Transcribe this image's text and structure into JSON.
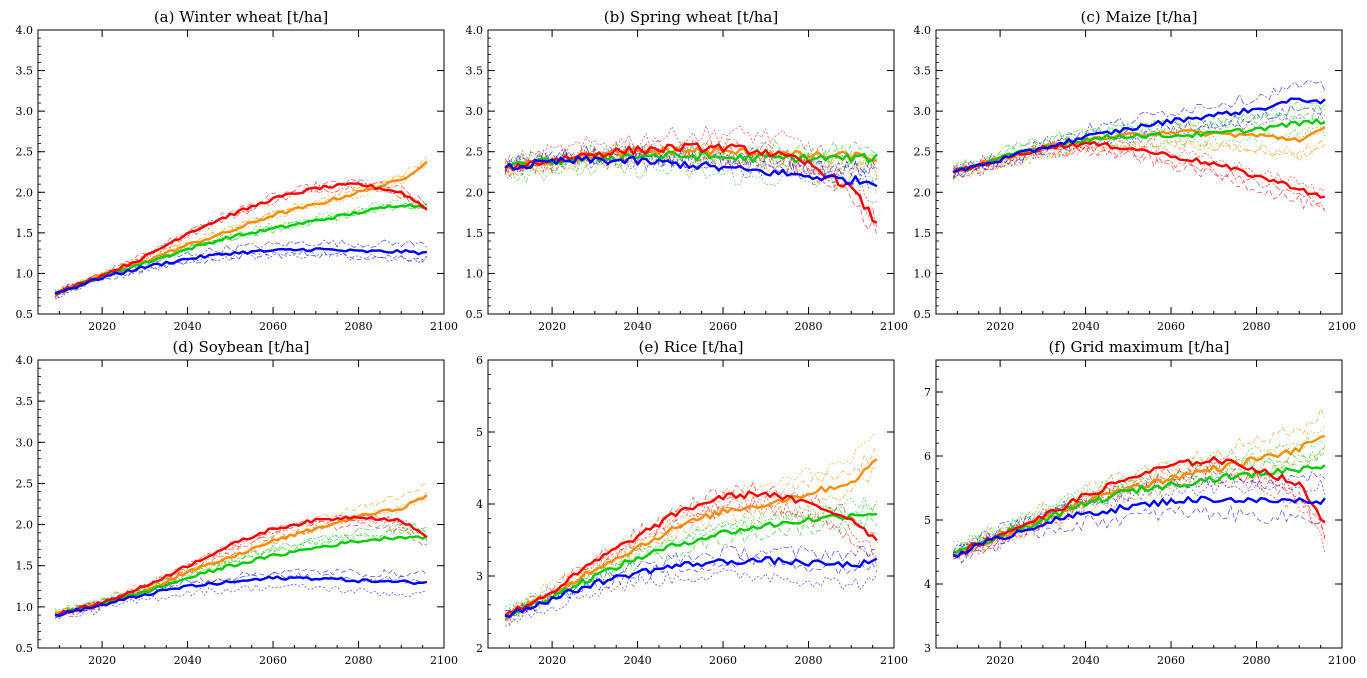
{
  "chart_data": [
    {
      "type": "line",
      "title": "(a) Winter wheat [t/ha]",
      "xlim": [
        2005,
        2100
      ],
      "ylim": [
        0.5,
        4.0
      ],
      "xticks": [
        2020,
        2040,
        2060,
        2080,
        2100
      ],
      "xtick_labels": [
        "2020",
        "2040",
        "2060",
        "2080",
        "2100"
      ],
      "yticks": [
        0.5,
        1.0,
        1.5,
        2.0,
        2.5,
        3.0,
        3.5,
        4.0
      ],
      "ytick_labels": [
        "0.5",
        "1.0",
        "1.5",
        "2.0",
        "2.5",
        "3.0",
        "3.5",
        "4.0"
      ],
      "x": [
        2009,
        2020,
        2030,
        2040,
        2050,
        2060,
        2070,
        2080,
        2090,
        2096
      ],
      "series": [
        {
          "color": "#ff8c00",
          "values": [
            0.75,
            0.97,
            1.15,
            1.35,
            1.52,
            1.72,
            1.85,
            2.0,
            2.15,
            2.38
          ]
        },
        {
          "color": "#00cc00",
          "values": [
            0.75,
            0.97,
            1.13,
            1.3,
            1.45,
            1.55,
            1.65,
            1.75,
            1.85,
            1.82
          ]
        },
        {
          "color": "#ff0000",
          "values": [
            0.75,
            0.98,
            1.2,
            1.5,
            1.72,
            1.92,
            2.05,
            2.1,
            2.0,
            1.8
          ]
        },
        {
          "color": "#0000ff",
          "values": [
            0.75,
            0.95,
            1.08,
            1.18,
            1.25,
            1.28,
            1.3,
            1.27,
            1.27,
            1.25
          ]
        }
      ],
      "ensemble_spread": 0.12
    },
    {
      "type": "line",
      "title": "(b) Spring wheat [t/ha]",
      "xlim": [
        2005,
        2100
      ],
      "ylim": [
        0.5,
        4.0
      ],
      "xticks": [
        2020,
        2040,
        2060,
        2080,
        2100
      ],
      "xtick_labels": [
        "2020",
        "2040",
        "2060",
        "2080",
        "2100"
      ],
      "yticks": [
        0.5,
        1.0,
        1.5,
        2.0,
        2.5,
        3.0,
        3.5,
        4.0
      ],
      "ytick_labels": [
        "0.5",
        "1.0",
        "1.5",
        "2.0",
        "2.5",
        "3.0",
        "3.5",
        "4.0"
      ],
      "x": [
        2009,
        2020,
        2030,
        2040,
        2050,
        2060,
        2070,
        2080,
        2090,
        2096
      ],
      "series": [
        {
          "color": "#ff8c00",
          "values": [
            2.3,
            2.4,
            2.45,
            2.5,
            2.52,
            2.5,
            2.48,
            2.45,
            2.45,
            2.42
          ]
        },
        {
          "color": "#00cc00",
          "values": [
            2.3,
            2.38,
            2.42,
            2.45,
            2.45,
            2.43,
            2.42,
            2.42,
            2.42,
            2.42
          ]
        },
        {
          "color": "#ff0000",
          "values": [
            2.3,
            2.4,
            2.48,
            2.52,
            2.55,
            2.55,
            2.5,
            2.35,
            2.05,
            1.62
          ]
        },
        {
          "color": "#0000ff",
          "values": [
            2.3,
            2.37,
            2.4,
            2.38,
            2.35,
            2.3,
            2.25,
            2.2,
            2.15,
            2.12
          ]
        }
      ],
      "ensemble_spread": 0.3
    },
    {
      "type": "line",
      "title": "(c) Maize [t/ha]",
      "xlim": [
        2005,
        2100
      ],
      "ylim": [
        0.5,
        4.0
      ],
      "xticks": [
        2020,
        2040,
        2060,
        2080,
        2100
      ],
      "xtick_labels": [
        "2020",
        "2040",
        "2060",
        "2080",
        "2100"
      ],
      "yticks": [
        0.5,
        1.0,
        1.5,
        2.0,
        2.5,
        3.0,
        3.5,
        4.0
      ],
      "ytick_labels": [
        "0.5",
        "1.0",
        "1.5",
        "2.0",
        "2.5",
        "3.0",
        "3.5",
        "4.0"
      ],
      "x": [
        2009,
        2020,
        2030,
        2040,
        2050,
        2060,
        2070,
        2080,
        2090,
        2096
      ],
      "series": [
        {
          "color": "#ff8c00",
          "values": [
            2.25,
            2.42,
            2.55,
            2.65,
            2.7,
            2.75,
            2.72,
            2.7,
            2.65,
            2.78
          ]
        },
        {
          "color": "#00cc00",
          "values": [
            2.25,
            2.42,
            2.55,
            2.65,
            2.7,
            2.7,
            2.72,
            2.78,
            2.85,
            2.88
          ]
        },
        {
          "color": "#ff0000",
          "values": [
            2.25,
            2.4,
            2.55,
            2.6,
            2.55,
            2.45,
            2.35,
            2.2,
            2.05,
            1.92
          ]
        },
        {
          "color": "#0000ff",
          "values": [
            2.25,
            2.4,
            2.55,
            2.68,
            2.78,
            2.88,
            2.95,
            3.02,
            3.15,
            3.12
          ]
        }
      ],
      "ensemble_spread": 0.18
    },
    {
      "type": "line",
      "title": "(d) Soybean [t/ha]",
      "xlim": [
        2005,
        2100
      ],
      "ylim": [
        0.5,
        4.0
      ],
      "xticks": [
        2020,
        2040,
        2060,
        2080,
        2100
      ],
      "xtick_labels": [
        "2020",
        "2040",
        "2060",
        "2080",
        "2100"
      ],
      "yticks": [
        0.5,
        1.0,
        1.5,
        2.0,
        2.5,
        3.0,
        3.5,
        4.0
      ],
      "ytick_labels": [
        "0.5",
        "1.0",
        "1.5",
        "2.0",
        "2.5",
        "3.0",
        "3.5",
        "4.0"
      ],
      "x": [
        2009,
        2020,
        2030,
        2040,
        2050,
        2060,
        2070,
        2080,
        2090,
        2096
      ],
      "series": [
        {
          "color": "#ff8c00",
          "values": [
            0.9,
            1.05,
            1.2,
            1.42,
            1.6,
            1.8,
            1.95,
            2.1,
            2.2,
            2.35
          ]
        },
        {
          "color": "#00cc00",
          "values": [
            0.9,
            1.04,
            1.18,
            1.35,
            1.5,
            1.62,
            1.72,
            1.8,
            1.85,
            1.85
          ]
        },
        {
          "color": "#ff0000",
          "values": [
            0.9,
            1.05,
            1.25,
            1.5,
            1.75,
            1.95,
            2.05,
            2.1,
            2.05,
            1.85
          ]
        },
        {
          "color": "#0000ff",
          "values": [
            0.9,
            1.02,
            1.15,
            1.25,
            1.3,
            1.35,
            1.35,
            1.32,
            1.3,
            1.3
          ]
        }
      ],
      "ensemble_spread": 0.12
    },
    {
      "type": "line",
      "title": "(e) Rice [t/ha]",
      "xlim": [
        2005,
        2100
      ],
      "ylim": [
        2,
        6
      ],
      "xticks": [
        2020,
        2040,
        2060,
        2080,
        2100
      ],
      "xtick_labels": [
        "2020",
        "2040",
        "2060",
        "2080",
        "2100"
      ],
      "yticks": [
        2,
        3,
        4,
        5,
        6
      ],
      "ytick_labels": [
        "2",
        "3",
        "4",
        "5",
        "6"
      ],
      "x": [
        2009,
        2020,
        2030,
        2040,
        2050,
        2060,
        2070,
        2080,
        2090,
        2096
      ],
      "series": [
        {
          "color": "#ff8c00",
          "values": [
            2.45,
            2.75,
            3.1,
            3.4,
            3.7,
            3.9,
            4.0,
            4.15,
            4.3,
            4.6
          ]
        },
        {
          "color": "#00cc00",
          "values": [
            2.45,
            2.72,
            3.0,
            3.25,
            3.45,
            3.6,
            3.7,
            3.78,
            3.85,
            3.88
          ]
        },
        {
          "color": "#ff0000",
          "values": [
            2.45,
            2.78,
            3.2,
            3.55,
            3.9,
            4.1,
            4.15,
            4.0,
            3.8,
            3.5
          ]
        },
        {
          "color": "#0000ff",
          "values": [
            2.45,
            2.68,
            2.9,
            3.05,
            3.15,
            3.2,
            3.22,
            3.18,
            3.15,
            3.2
          ]
        }
      ],
      "ensemble_spread": 0.25
    },
    {
      "type": "line",
      "title": "(f) Grid maximum [t/ha]",
      "xlim": [
        2005,
        2100
      ],
      "ylim": [
        3,
        7.5
      ],
      "xticks": [
        2020,
        2040,
        2060,
        2080,
        2100
      ],
      "xtick_labels": [
        "2020",
        "2040",
        "2060",
        "2080",
        "2100"
      ],
      "yticks": [
        3,
        4,
        5,
        6,
        7
      ],
      "ytick_labels": [
        "3",
        "4",
        "5",
        "6",
        "7"
      ],
      "x": [
        2009,
        2020,
        2030,
        2040,
        2050,
        2060,
        2070,
        2080,
        2090,
        2096
      ],
      "series": [
        {
          "color": "#ff8c00",
          "values": [
            4.45,
            4.75,
            5.0,
            5.3,
            5.5,
            5.65,
            5.8,
            5.95,
            6.1,
            6.35
          ]
        },
        {
          "color": "#00cc00",
          "values": [
            4.45,
            4.75,
            5.0,
            5.25,
            5.45,
            5.55,
            5.65,
            5.72,
            5.8,
            5.85
          ]
        },
        {
          "color": "#ff0000",
          "values": [
            4.45,
            4.78,
            5.05,
            5.38,
            5.65,
            5.85,
            5.95,
            5.8,
            5.55,
            4.95
          ]
        },
        {
          "color": "#0000ff",
          "values": [
            4.45,
            4.72,
            4.95,
            5.1,
            5.2,
            5.3,
            5.33,
            5.3,
            5.3,
            5.3
          ]
        }
      ],
      "ensemble_spread": 0.3
    }
  ]
}
